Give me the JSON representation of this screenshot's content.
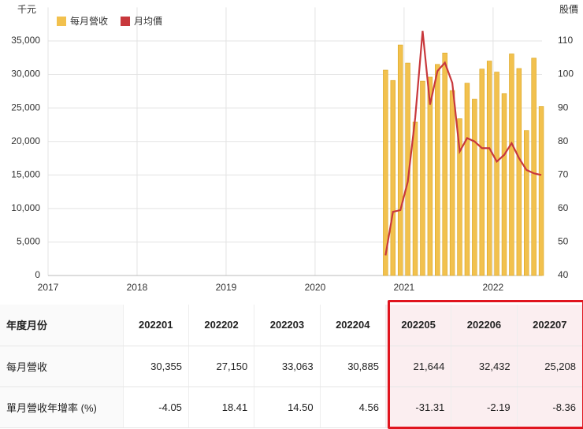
{
  "chart_data": {
    "type": "bar-line",
    "y_label": "千元",
    "y2_label": "股價",
    "x": [
      "2020-10",
      "2020-11",
      "2020-12",
      "2021-01",
      "2021-02",
      "2021-03",
      "2021-04",
      "2021-05",
      "2021-06",
      "2021-07",
      "2021-08",
      "2021-09",
      "2021-10",
      "2021-11",
      "2021-12",
      "2022-01",
      "2022-02",
      "2022-03",
      "2022-04",
      "2022-05",
      "2022-06",
      "2022-07"
    ],
    "series": [
      {
        "name": "每月營收",
        "type": "bar",
        "color": "#f2c14e",
        "values": [
          30650,
          29100,
          34400,
          31700,
          22900,
          29000,
          29600,
          31500,
          33200,
          27600,
          23400,
          28700,
          26300,
          30800,
          32000,
          30355,
          27150,
          33063,
          30885,
          21644,
          32432,
          25208
        ]
      },
      {
        "name": "月均價",
        "type": "line",
        "axis": "y2",
        "color": "#c8383c",
        "values": [
          46,
          59,
          59.5,
          68,
          87,
          113,
          91,
          101,
          103.5,
          97.5,
          77,
          81,
          80,
          78,
          78,
          74,
          76,
          79.5,
          75,
          71.5,
          70.5,
          70
        ]
      }
    ],
    "xlim": [
      2017,
      2022.55
    ],
    "xticks": [
      2017,
      2018,
      2019,
      2020,
      2021,
      2022
    ],
    "ylim": [
      0,
      40000
    ],
    "yticks": [
      0,
      {
        "value": 5000,
        "label": "5,000"
      },
      {
        "value": 10000,
        "label": "10,000"
      },
      {
        "value": 15000,
        "label": "15,000"
      },
      {
        "value": 20000,
        "label": "20,000"
      },
      {
        "value": 25000,
        "label": "25,000"
      },
      {
        "value": 30000,
        "label": "30,000"
      },
      {
        "value": 35000,
        "label": "35,000"
      }
    ],
    "y2lim": [
      40,
      120
    ],
    "y2ticks": [
      40,
      50,
      60,
      70,
      80,
      90,
      100,
      110
    ],
    "grid": true,
    "legend": "top-left"
  },
  "table": {
    "rows": [
      [
        "年度月份",
        "202201",
        "202202",
        "202203",
        "202204",
        "202205",
        "202206",
        "202207"
      ],
      [
        "每月營收",
        "30,355",
        "27,150",
        "33,063",
        "30,885",
        "21,644",
        "32,432",
        "25,208"
      ],
      [
        "單月營收年增率 (%)",
        "-4.05",
        "18.41",
        "14.50",
        "4.56",
        "-31.31",
        "-2.19",
        "-8.36"
      ]
    ]
  }
}
